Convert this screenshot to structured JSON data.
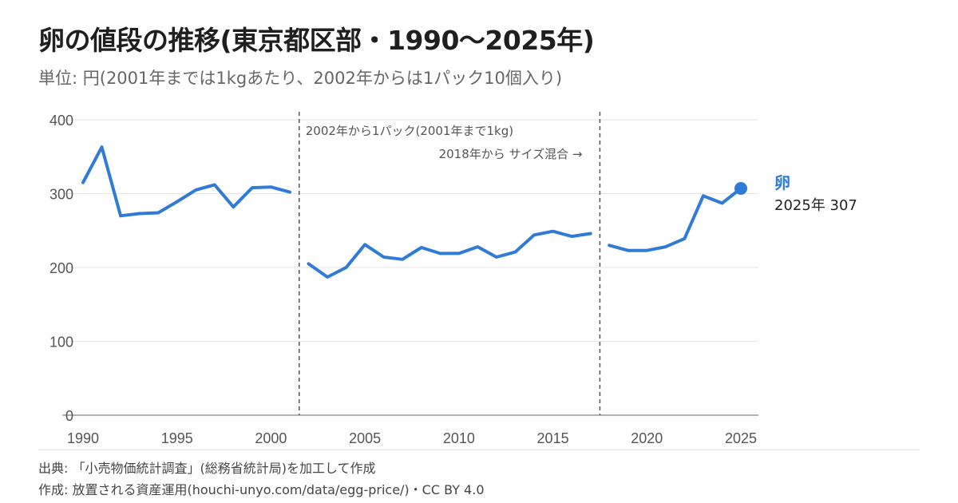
{
  "title": "卵の値段の推移(東京都区部・1990〜2025年)",
  "subtitle": "単位: 円(2001年までは1kgあたり、2002年からは1パック10個入り)",
  "footer": {
    "source": "出典: 「小売物価統計調査」(総務省統計局)を加工して作成",
    "credit": "作成: 放置される資産運用(houchi-unyo.com/data/egg-price/)・CC BY 4.0"
  },
  "colors": {
    "line": "#2f7bd6",
    "grid": "#e6e6e6",
    "axis": "#888888",
    "text": "#555555"
  },
  "chart_data": {
    "type": "line",
    "title": "卵の値段の推移(東京都区部・1990〜2025年)",
    "ylabel": "単位: 円",
    "xlim": [
      1990,
      2025
    ],
    "ylim": [
      0,
      400
    ],
    "yticks": [
      0,
      100,
      200,
      300,
      400
    ],
    "xticks": [
      1990,
      1995,
      2000,
      2005,
      2010,
      2015,
      2020,
      2025
    ],
    "grid": true,
    "series": [
      {
        "name": "卵",
        "segments": [
          {
            "x": [
              1990,
              1991,
              1992,
              1993,
              1994,
              1995,
              1996,
              1997,
              1998,
              1999,
              2000,
              2001
            ],
            "y": [
              315,
              363,
              270,
              273,
              274,
              289,
              305,
              312,
              282,
              308,
              309,
              302
            ]
          },
          {
            "x": [
              2002,
              2003,
              2004,
              2005,
              2006,
              2007,
              2008,
              2009,
              2010,
              2011,
              2012,
              2013,
              2014,
              2015,
              2016,
              2017
            ],
            "y": [
              205,
              187,
              200,
              231,
              214,
              211,
              227,
              219,
              219,
              228,
              214,
              221,
              244,
              249,
              242,
              246
            ]
          },
          {
            "x": [
              2018,
              2019,
              2020,
              2021,
              2022,
              2023,
              2024,
              2025
            ],
            "y": [
              230,
              223,
              223,
              228,
              239,
              297,
              287,
              307
            ]
          }
        ]
      }
    ],
    "breaks": [
      {
        "x": 2001.5,
        "label": "2002年から1パック(2001年まで1kg)"
      },
      {
        "x": 2017.5,
        "label": "2018年から サイズ混合 →"
      }
    ],
    "end_label": {
      "name": "卵",
      "value_text": "2025年 307"
    }
  }
}
